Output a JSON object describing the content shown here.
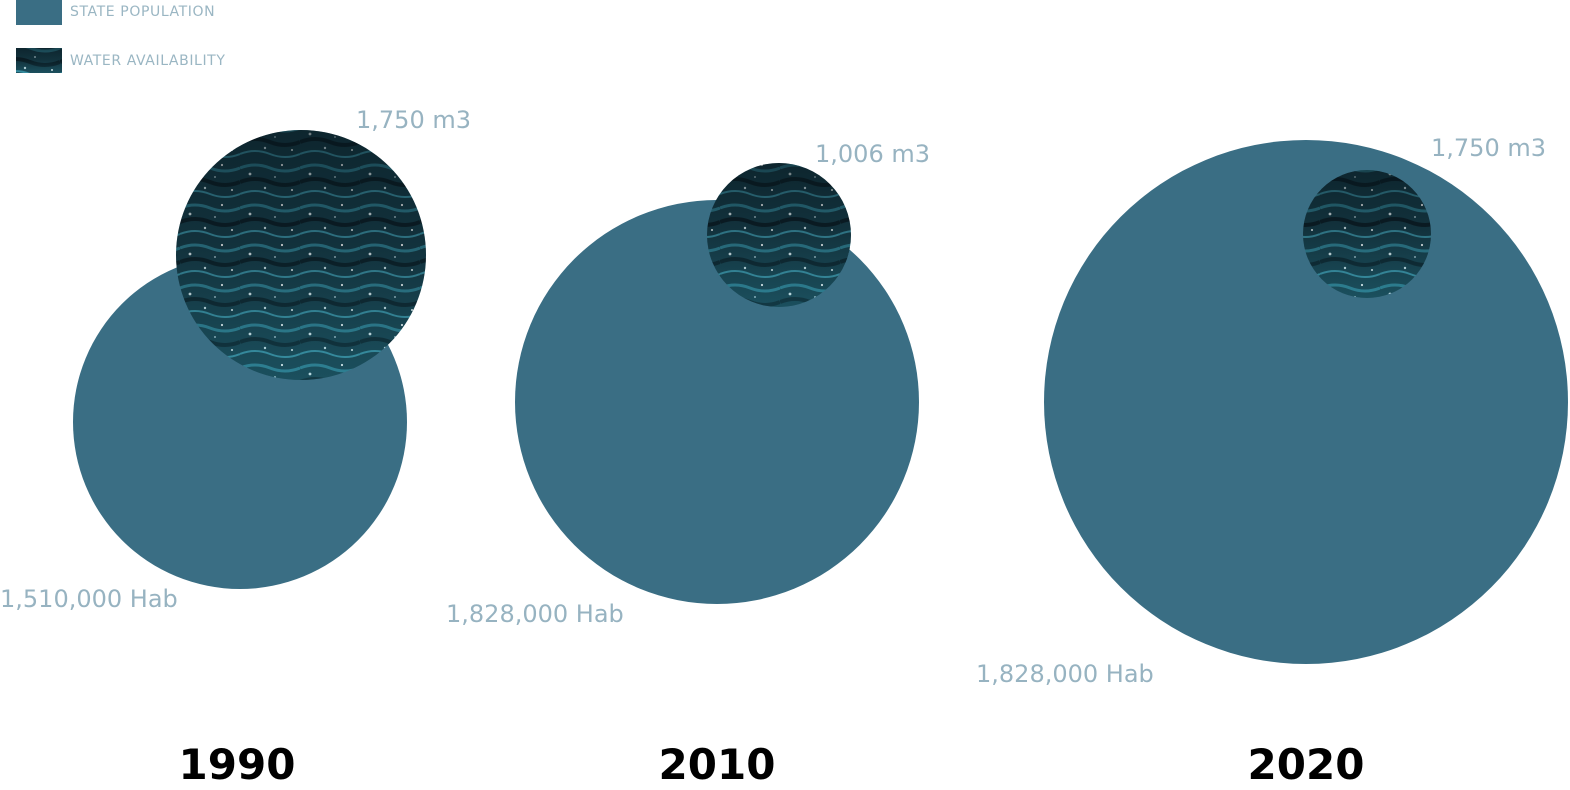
{
  "legend": {
    "population_label": "STATE POPULATION",
    "water_label": "WATER AVAILABILITY"
  },
  "colors": {
    "population": "#3a6e84",
    "water_dark": "#0f2530",
    "water_mid": "#1d5566",
    "water_light": "#2f7c8e",
    "label": "#97b3c1",
    "year": "#000000"
  },
  "chart_data": {
    "type": "bubble",
    "title": "",
    "series": [
      {
        "name": "STATE POPULATION",
        "unit": "Hab"
      },
      {
        "name": "WATER AVAILABILITY",
        "unit": "m3"
      }
    ],
    "groups": [
      {
        "year": "1990",
        "population": 1510000,
        "population_label": "1,510,000 Hab",
        "water": 1750,
        "water_label": "1,750 m3"
      },
      {
        "year": "2010",
        "population": 1828000,
        "population_label": "1,828,000 Hab",
        "water": 1006,
        "water_label": "1,006 m3"
      },
      {
        "year": "2020",
        "population": 1828000,
        "population_label": "1,828,000 Hab",
        "water": 1750,
        "water_label": "1,750 m3"
      }
    ]
  }
}
